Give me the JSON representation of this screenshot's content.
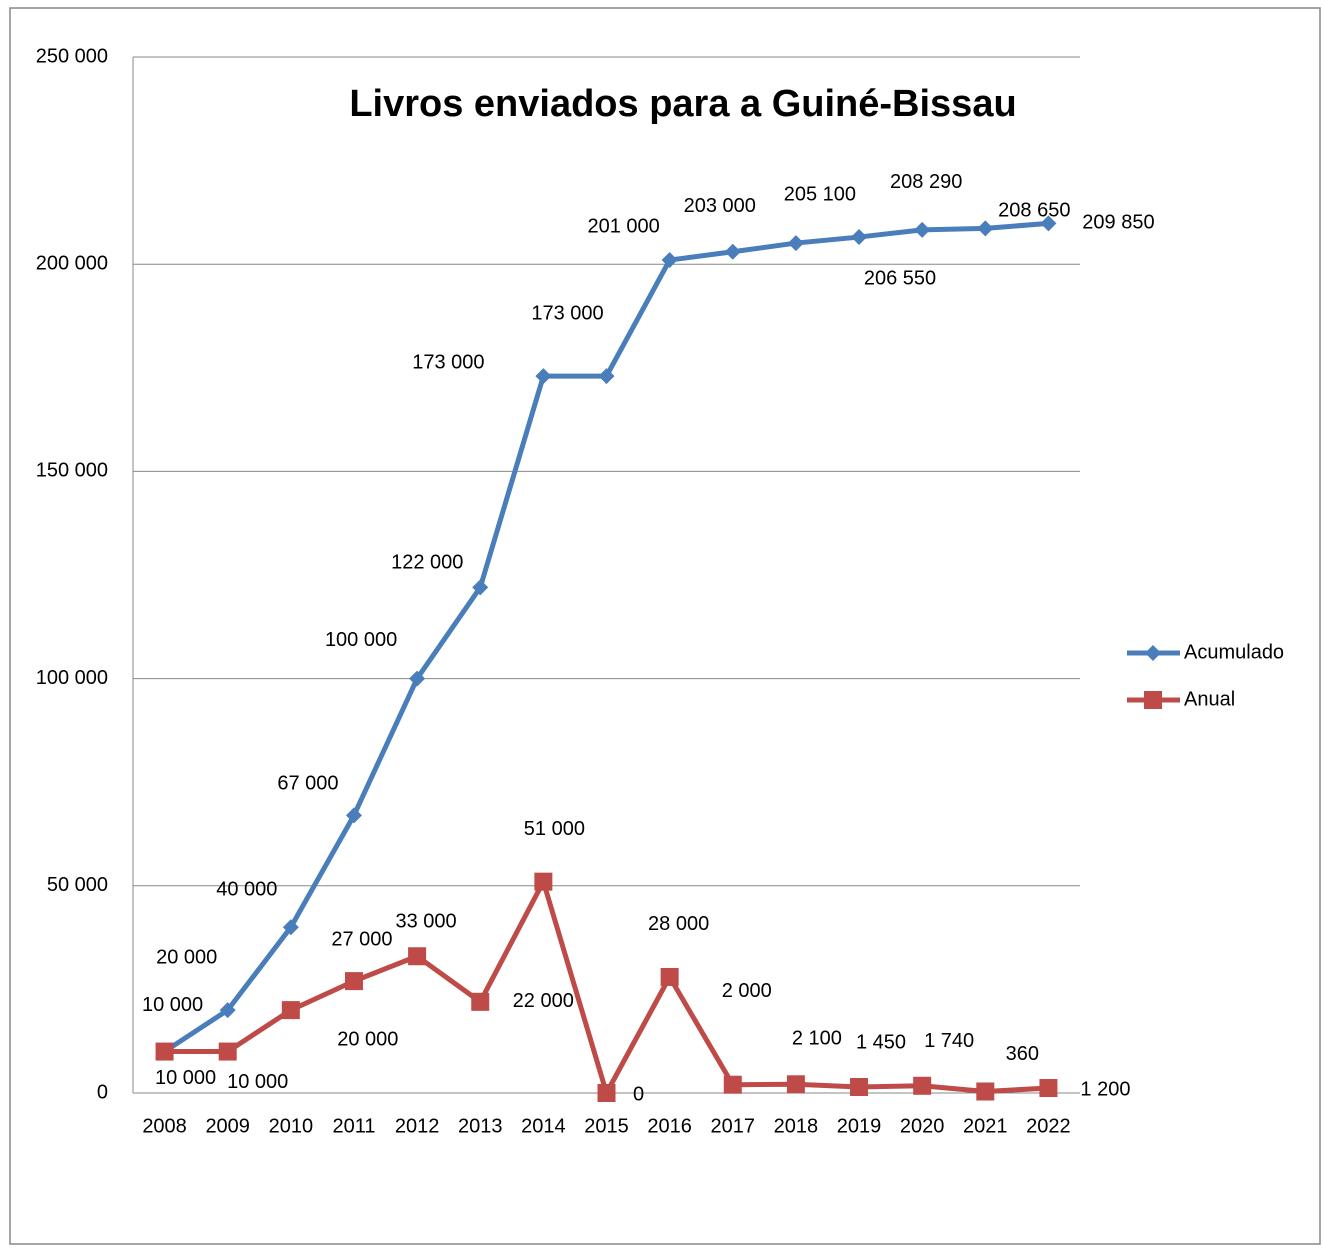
{
  "chart_data": {
    "type": "line",
    "title": "Livros enviados para a Guiné-Bissau",
    "categories": [
      "2008",
      "2009",
      "2010",
      "2011",
      "2012",
      "2013",
      "2014",
      "2015",
      "2016",
      "2017",
      "2018",
      "2019",
      "2020",
      "2021",
      "2022"
    ],
    "series": [
      {
        "name": "Acumulado",
        "color": "#4a7ebb",
        "marker": "diamond",
        "values": [
          10000,
          20000,
          40000,
          67000,
          100000,
          122000,
          173000,
          173000,
          201000,
          203000,
          205100,
          206550,
          208290,
          208650,
          209850
        ],
        "value_labels": [
          "10 000",
          "20 000",
          "40 000",
          "67 000",
          "100 000",
          "122 000",
          "173 000",
          "173 000",
          "201 000",
          "203 000",
          "205 100",
          "206 550",
          "208 290",
          "208 650",
          "209 850"
        ]
      },
      {
        "name": "Anual",
        "color": "#be4b48",
        "marker": "square",
        "values": [
          10000,
          10000,
          20000,
          27000,
          33000,
          22000,
          51000,
          0,
          28000,
          2000,
          2100,
          1450,
          1740,
          360,
          1200
        ],
        "value_labels": [
          "10 000",
          "10 000",
          "20 000",
          "27 000",
          "33 000",
          "22 000",
          "51 000",
          "0",
          "28 000",
          "2 000",
          "2 100",
          "1 450",
          "1 740",
          "360",
          "1 200"
        ]
      }
    ],
    "ylim": [
      0,
      250000
    ],
    "yticks": [
      0,
      {
        "value": 50000,
        "label": "50 000"
      },
      {
        "value": 100000,
        "label": "100 000"
      },
      {
        "value": 150000,
        "label": "150 000"
      },
      {
        "value": 200000,
        "label": "200 000"
      },
      {
        "value": 250000,
        "label": "250 000"
      }
    ],
    "grid": true,
    "legend": "right"
  }
}
